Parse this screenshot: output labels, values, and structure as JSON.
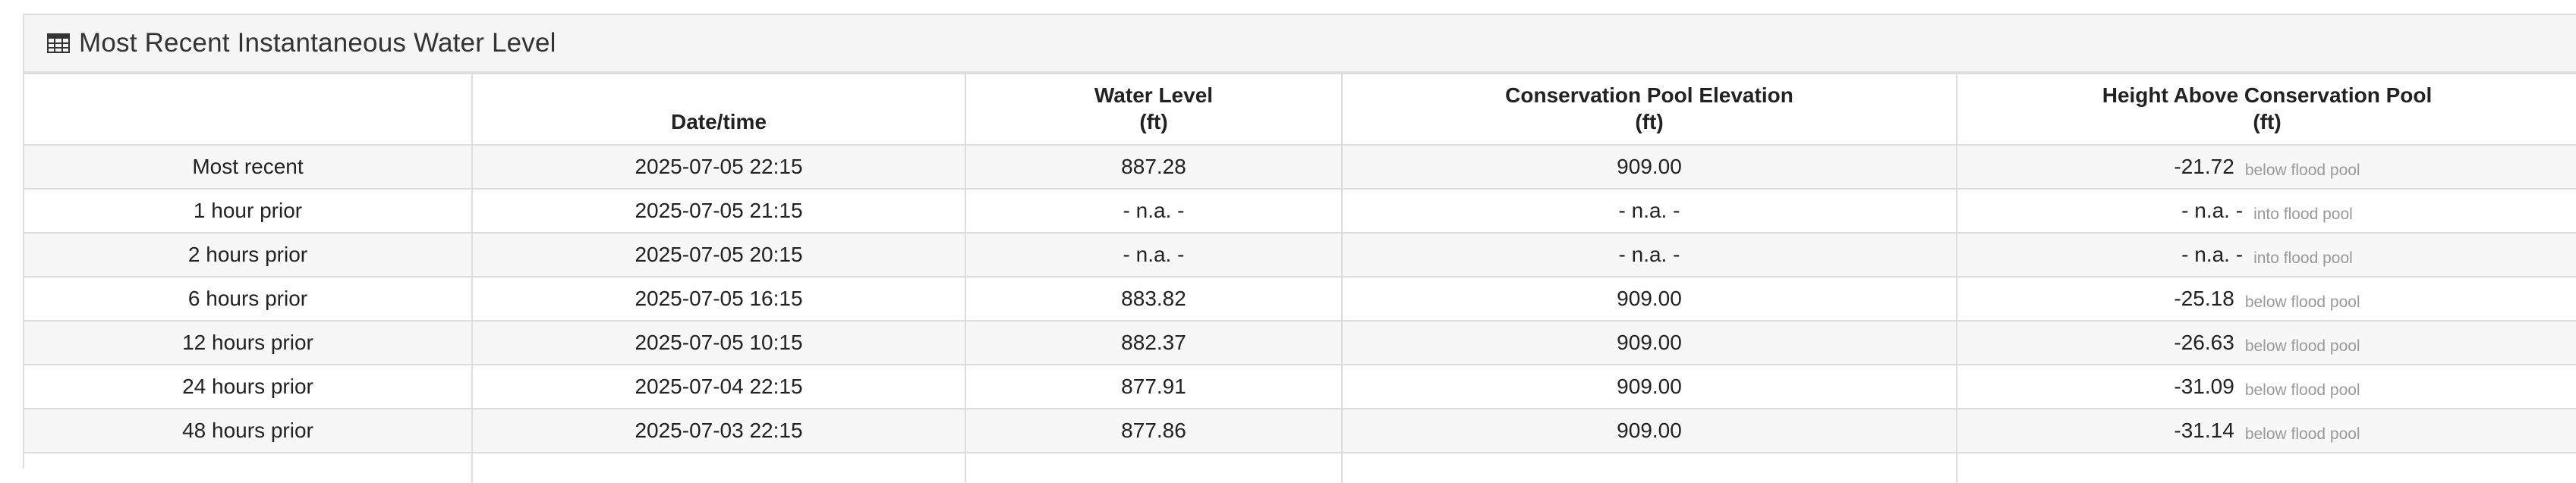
{
  "panel": {
    "title": "Most Recent Instantaneous Water Level",
    "icon": "table-icon"
  },
  "table": {
    "headers": {
      "label": "",
      "datetime": "Date/time",
      "water_level": "Water Level",
      "water_level_unit": "(ft)",
      "conservation_pool": "Conservation Pool Elevation",
      "conservation_pool_unit": "(ft)",
      "height_above": "Height Above Conservation Pool",
      "height_above_unit": "(ft)"
    },
    "rows": [
      {
        "label": "Most recent",
        "datetime": "2025-07-05 22:15",
        "water_level": "887.28",
        "pool": "909.00",
        "height": "-21.72",
        "note": "below flood pool"
      },
      {
        "label": "1 hour prior",
        "datetime": "2025-07-05 21:15",
        "water_level": "- n.a. -",
        "pool": "- n.a. -",
        "height": "- n.a. -",
        "note": "into flood pool"
      },
      {
        "label": "2 hours prior",
        "datetime": "2025-07-05 20:15",
        "water_level": "- n.a. -",
        "pool": "- n.a. -",
        "height": "- n.a. -",
        "note": "into flood pool"
      },
      {
        "label": "6 hours prior",
        "datetime": "2025-07-05 16:15",
        "water_level": "883.82",
        "pool": "909.00",
        "height": "-25.18",
        "note": "below flood pool"
      },
      {
        "label": "12 hours prior",
        "datetime": "2025-07-05 10:15",
        "water_level": "882.37",
        "pool": "909.00",
        "height": "-26.63",
        "note": "below flood pool"
      },
      {
        "label": "24 hours prior",
        "datetime": "2025-07-04 22:15",
        "water_level": "877.91",
        "pool": "909.00",
        "height": "-31.09",
        "note": "below flood pool"
      },
      {
        "label": "48 hours prior",
        "datetime": "2025-07-03 22:15",
        "water_level": "877.86",
        "pool": "909.00",
        "height": "-31.14",
        "note": "below flood pool"
      }
    ]
  }
}
